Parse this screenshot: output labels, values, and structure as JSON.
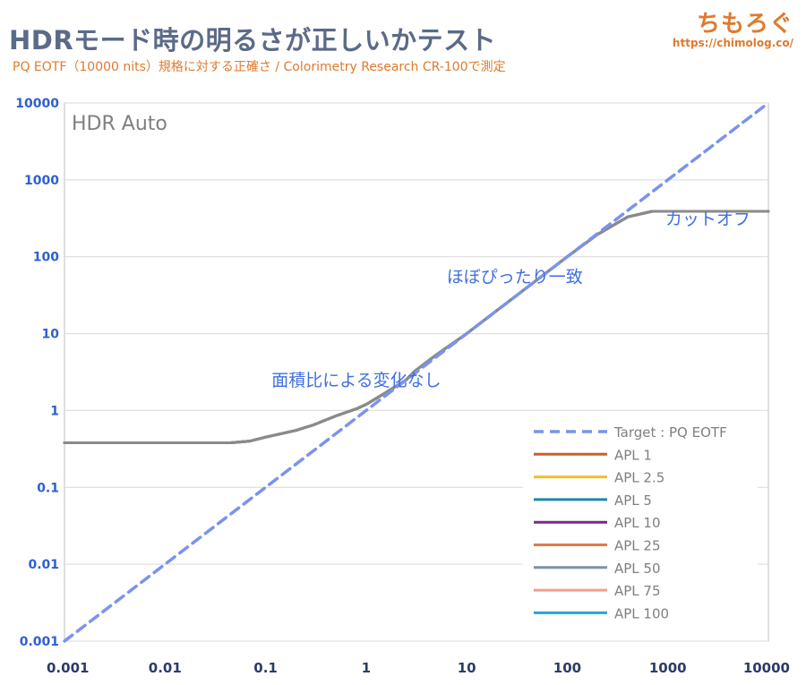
{
  "header": {
    "title": "HDRモード時の明るさが正しいかテスト",
    "subtitle": "PQ EOTF（10000 nits）規格に対する正確さ / Colorimetry Research CR-100で測定",
    "logo_text": "ちもろぐ",
    "logo_url": "https://chimolog.co/"
  },
  "colors": {
    "title": "#5b6a87",
    "accent": "#e07a2e",
    "axis_ticks": "#2f5fd0",
    "annotation": "#3f6fe0",
    "target": "#7b93ee"
  },
  "chart_data": {
    "type": "line",
    "panel_label": "HDR Auto",
    "x_scale": "log",
    "y_scale": "log",
    "xlim": [
      0.001,
      10000
    ],
    "ylim": [
      0.001,
      10000
    ],
    "x_ticks": [
      "0.001",
      "0.01",
      "0.1",
      "1",
      "10",
      "100",
      "1000",
      "10000"
    ],
    "y_ticks": [
      "0.001",
      "0.01",
      "0.1",
      "1",
      "10",
      "100",
      "1000",
      "10000"
    ],
    "grid": true,
    "legend_position": "bottom-right",
    "annotations": [
      {
        "text": "面積比による変化なし",
        "x": 0.8,
        "y": 2.1
      },
      {
        "text": "ほぼぴったり一致",
        "x": 30,
        "y": 46
      },
      {
        "text": "カットオフ",
        "x": 2500,
        "y": 260
      }
    ],
    "series": [
      {
        "name": "Target : PQ EOTF",
        "color": "#7b93ee",
        "dashed": true,
        "x": [
          0.001,
          10000
        ],
        "y": [
          0.001,
          10000
        ]
      },
      {
        "name": "APL 1",
        "color": "#c5612b",
        "dashed": false,
        "x": [
          0.001,
          0.02,
          0.045,
          0.07,
          0.1,
          0.2,
          0.3,
          0.5,
          0.8,
          1,
          1.5,
          2.5,
          3,
          5,
          10,
          20,
          50,
          100,
          200,
          400,
          700,
          10000
        ],
        "y": [
          0.38,
          0.38,
          0.38,
          0.4,
          0.45,
          0.55,
          0.65,
          0.85,
          1.05,
          1.2,
          1.65,
          2.5,
          3.2,
          5.3,
          10,
          20,
          50,
          100,
          195,
          330,
          390,
          390
        ]
      },
      {
        "name": "APL 2.5",
        "color": "#f2c02a",
        "dashed": false,
        "x": [
          0.001,
          0.02,
          0.045,
          0.07,
          0.1,
          0.2,
          0.3,
          0.5,
          0.8,
          1,
          1.5,
          2.5,
          3,
          5,
          10,
          20,
          50,
          100,
          200,
          400,
          700,
          10000
        ],
        "y": [
          0.38,
          0.38,
          0.38,
          0.4,
          0.45,
          0.55,
          0.65,
          0.85,
          1.05,
          1.2,
          1.65,
          2.5,
          3.2,
          5.3,
          10,
          20,
          50,
          100,
          195,
          330,
          390,
          390
        ]
      },
      {
        "name": "APL 5",
        "color": "#1f8aa3",
        "dashed": false,
        "x": [
          0.001,
          0.02,
          0.045,
          0.07,
          0.1,
          0.2,
          0.3,
          0.5,
          0.8,
          1,
          1.5,
          2.5,
          3,
          5,
          10,
          20,
          50,
          100,
          200,
          400,
          700,
          10000
        ],
        "y": [
          0.38,
          0.38,
          0.38,
          0.4,
          0.45,
          0.55,
          0.65,
          0.85,
          1.05,
          1.2,
          1.65,
          2.5,
          3.2,
          5.3,
          10,
          20,
          50,
          100,
          195,
          330,
          390,
          390
        ]
      },
      {
        "name": "APL 10",
        "color": "#7a2a86",
        "dashed": false,
        "x": [
          0.001,
          0.02,
          0.045,
          0.07,
          0.1,
          0.2,
          0.3,
          0.5,
          0.8,
          1,
          1.5,
          2.5,
          3,
          5,
          10,
          20,
          50,
          100,
          200,
          400,
          700,
          10000
        ],
        "y": [
          0.38,
          0.38,
          0.38,
          0.4,
          0.45,
          0.55,
          0.65,
          0.85,
          1.05,
          1.2,
          1.65,
          2.5,
          3.2,
          5.3,
          10,
          20,
          50,
          100,
          195,
          330,
          390,
          390
        ]
      },
      {
        "name": "APL 25",
        "color": "#e0794a",
        "dashed": false,
        "x": [
          0.001,
          0.02,
          0.045,
          0.07,
          0.1,
          0.2,
          0.3,
          0.5,
          0.8,
          1,
          1.5,
          2.5,
          3,
          5,
          10,
          20,
          50,
          100,
          200,
          400,
          700,
          10000
        ],
        "y": [
          0.38,
          0.38,
          0.38,
          0.4,
          0.45,
          0.55,
          0.65,
          0.85,
          1.05,
          1.2,
          1.65,
          2.5,
          3.2,
          5.3,
          10,
          20,
          50,
          100,
          195,
          330,
          390,
          390
        ]
      },
      {
        "name": "APL 50",
        "color": "#7f91a6",
        "dashed": false,
        "x": [
          0.001,
          0.02,
          0.045,
          0.07,
          0.1,
          0.2,
          0.3,
          0.5,
          0.8,
          1,
          1.5,
          2.5,
          3,
          5,
          10,
          20,
          50,
          100,
          200,
          400,
          700,
          10000
        ],
        "y": [
          0.38,
          0.38,
          0.38,
          0.4,
          0.45,
          0.55,
          0.65,
          0.85,
          1.05,
          1.2,
          1.65,
          2.5,
          3.2,
          5.3,
          10,
          20,
          50,
          100,
          195,
          330,
          390,
          390
        ]
      },
      {
        "name": "APL 75",
        "color": "#f0a08a",
        "dashed": false,
        "x": [
          0.001,
          0.02,
          0.045,
          0.07,
          0.1,
          0.2,
          0.3,
          0.5,
          0.8,
          1,
          1.5,
          2.5,
          3,
          5,
          10,
          20,
          50,
          100,
          200,
          400,
          700,
          10000
        ],
        "y": [
          0.38,
          0.38,
          0.38,
          0.4,
          0.45,
          0.55,
          0.65,
          0.85,
          1.05,
          1.2,
          1.65,
          2.5,
          3.2,
          5.3,
          10,
          20,
          50,
          100,
          195,
          330,
          390,
          390
        ]
      },
      {
        "name": "APL 100",
        "color": "#2aa3d8",
        "dashed": false,
        "x": [
          0.001,
          0.02,
          0.045,
          0.07,
          0.1,
          0.2,
          0.3,
          0.5,
          0.8,
          1,
          1.5,
          2.5,
          3,
          5,
          10,
          20,
          50,
          100,
          200,
          400,
          700,
          10000
        ],
        "y": [
          0.38,
          0.38,
          0.38,
          0.4,
          0.45,
          0.55,
          0.65,
          0.85,
          1.05,
          1.2,
          1.65,
          2.5,
          3.2,
          5.3,
          10,
          20,
          50,
          100,
          195,
          330,
          390,
          390
        ]
      },
      {
        "name": "",
        "color": "#8a8a8a",
        "dashed": false,
        "x": [
          0.001,
          0.02,
          0.045,
          0.07,
          0.1,
          0.2,
          0.3,
          0.5,
          0.8,
          1,
          1.5,
          2.5,
          3,
          5,
          10,
          20,
          50,
          100,
          200,
          400,
          700,
          10000
        ],
        "y": [
          0.38,
          0.38,
          0.38,
          0.4,
          0.45,
          0.55,
          0.65,
          0.85,
          1.05,
          1.2,
          1.65,
          2.5,
          3.2,
          5.3,
          10,
          20,
          50,
          100,
          195,
          330,
          390,
          390
        ]
      }
    ]
  }
}
